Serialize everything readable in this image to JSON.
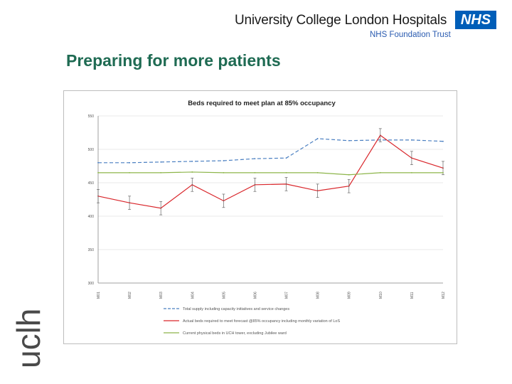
{
  "header": {
    "org_name": "University College London Hospitals",
    "nhs_logo": "NHS",
    "trust_name": "NHS Foundation Trust"
  },
  "page": {
    "title": "Preparing for more patients",
    "side_logo": "uclh"
  },
  "chart_data": {
    "type": "line",
    "title": "Beds required to meet plan at 85% occupancy",
    "xlabel": "",
    "ylabel": "",
    "ylim": [
      300,
      550
    ],
    "yticks": [
      300,
      350,
      400,
      450,
      500,
      550
    ],
    "categories": [
      "M01",
      "M02",
      "M03",
      "M04",
      "M05",
      "M06",
      "M07",
      "M08",
      "M09",
      "M10",
      "M11",
      "M12"
    ],
    "grid": true,
    "legend_position": "bottom",
    "series": [
      {
        "name": "Total supply including capacity initiatives and service changes",
        "color": "#4a7fc1",
        "style": "dashed",
        "values": [
          480,
          480,
          481,
          482,
          483,
          486,
          487,
          516,
          513,
          514,
          514,
          512
        ]
      },
      {
        "name": "Actual beds required to meet forecast @85% occupancy including monthly variation of LoS",
        "color": "#d9262b",
        "style": "solid",
        "error_bars": true,
        "values": [
          430,
          420,
          412,
          447,
          423,
          447,
          448,
          438,
          445,
          521,
          487,
          472
        ]
      },
      {
        "name": "Current physical beds in UCH tower, excluding Jubilee ward",
        "color": "#8db54a",
        "style": "solid",
        "values": [
          465,
          465,
          465,
          466,
          465,
          465,
          465,
          465,
          462,
          465,
          465,
          465
        ]
      }
    ]
  },
  "colors": {
    "title_green": "#1f6b53",
    "nhs_blue": "#005eb8",
    "trust_blue": "#2a5bb0"
  }
}
